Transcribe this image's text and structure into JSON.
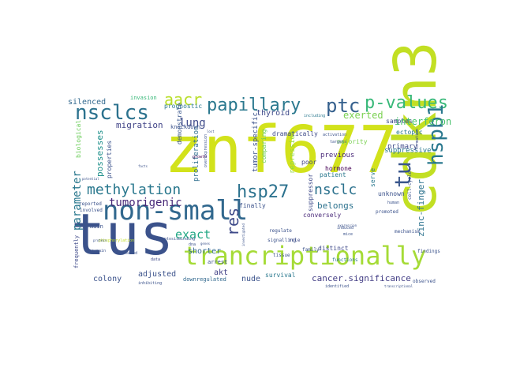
{
  "words": [
    {
      "text": "znf677",
      "color": "#d2e21b"
    },
    {
      "text": "cdkn3",
      "color": "#c2df23"
    },
    {
      "text": "tus",
      "color": "#3b528b"
    },
    {
      "text": "trancriptionally",
      "color": "#a5db36"
    },
    {
      "text": "non-small",
      "color": "#31688e"
    },
    {
      "text": "nsclcs",
      "color": "#2c728e"
    },
    {
      "text": "ptc",
      "color": "#35608d"
    },
    {
      "text": "papillary",
      "color": "#2a788e"
    },
    {
      "text": "aacr",
      "color": "#b8de29"
    },
    {
      "text": "p-values",
      "color": "#37b878"
    },
    {
      "text": "methylation",
      "color": "#2a788e"
    },
    {
      "text": "hsp27",
      "color": "#2c728e"
    },
    {
      "text": "hspb1",
      "color": "#2a788e"
    },
    {
      "text": "tu",
      "color": "#39568c"
    },
    {
      "text": "nsclc",
      "color": "#2c728e"
    },
    {
      "text": "res",
      "color": "#3e4a89"
    },
    {
      "text": "exact",
      "color": "#22a884"
    },
    {
      "text": "tumorigenic",
      "color": "#482878"
    },
    {
      "text": "parameter",
      "color": "#2a788e"
    },
    {
      "text": "lung",
      "color": "#3e4a89"
    },
    {
      "text": "zinc-finger",
      "color": "#2c728e"
    },
    {
      "text": "interferon",
      "color": "#4ac16d"
    },
    {
      "text": "exerted",
      "color": "#7ad151"
    },
    {
      "text": "silenced",
      "color": "#31688e"
    },
    {
      "text": "migration",
      "color": "#414487"
    },
    {
      "text": "possesses",
      "color": "#21918c"
    },
    {
      "text": "cancer.significance",
      "color": "#433e85"
    },
    {
      "text": "belongs",
      "color": "#2c728e"
    },
    {
      "text": "shorter",
      "color": "#31688e"
    },
    {
      "text": "adjusted",
      "color": "#3b528b"
    },
    {
      "text": "colony",
      "color": "#3b528b"
    },
    {
      "text": "nude",
      "color": "#3b528b"
    },
    {
      "text": "akt",
      "color": "#424086"
    },
    {
      "text": "thyroid",
      "color": "#3e4a89"
    },
    {
      "text": "proliferation",
      "color": "#2e6e8e"
    },
    {
      "text": "tumor-specific",
      "color": "#3b528b"
    },
    {
      "text": "repression",
      "color": "#90d743"
    },
    {
      "text": "suppressive",
      "color": "#2a788e"
    },
    {
      "text": "primary",
      "color": "#3e4a89"
    },
    {
      "text": "ectopic",
      "color": "#2a788e"
    },
    {
      "text": "samples",
      "color": "#3e4a89"
    },
    {
      "text": "previous",
      "color": "#482878"
    },
    {
      "text": "patient",
      "color": "#2a788e"
    },
    {
      "text": "hormone",
      "color": "#440154"
    },
    {
      "text": "unknown",
      "color": "#3b528b"
    },
    {
      "text": "poor",
      "color": "#414487"
    },
    {
      "text": "comparing",
      "color": "#6ccd5a"
    },
    {
      "text": "dramatically",
      "color": "#3e4a89"
    },
    {
      "text": "majority",
      "color": "#7ad151"
    },
    {
      "text": "properties",
      "color": "#3b528b"
    },
    {
      "text": "biological",
      "color": "#6ccd5a"
    },
    {
      "text": "prognostic",
      "color": "#2a788e"
    },
    {
      "text": "invasion",
      "color": "#37b878"
    },
    {
      "text": "knockdown",
      "color": "#3b528b"
    },
    {
      "text": "demonstrate",
      "color": "#39568c"
    },
    {
      "text": "suppressor",
      "color": "#3e4a89"
    },
    {
      "text": "conversely",
      "color": "#482878"
    },
    {
      "text": "finally",
      "color": "#3b528b"
    },
    {
      "text": "serve",
      "color": "#2a788e"
    },
    {
      "text": "distinct",
      "color": "#3e4a89"
    },
    {
      "text": "arrest",
      "color": "#3b528b"
    },
    {
      "text": "survival",
      "color": "#2a788e"
    },
    {
      "text": "downregulated",
      "color": "#31688e"
    },
    {
      "text": "frequently",
      "color": "#3e4a89"
    },
    {
      "text": "main",
      "color": "#3b528b"
    },
    {
      "text": "involved",
      "color": "#3b528b"
    },
    {
      "text": "reported",
      "color": "#3b528b"
    },
    {
      "text": "apoptosisbinding",
      "color": "#3b528b"
    },
    {
      "text": "phosphorylation",
      "color": "#c2df23"
    },
    {
      "text": "inhibiting",
      "color": "#3b528b"
    },
    {
      "text": "growth",
      "color": "#440154"
    },
    {
      "text": "overexpression",
      "color": "#3b528b"
    },
    {
      "text": "including",
      "color": "#2a788e"
    },
    {
      "text": "signalling",
      "color": "#3b528b"
    },
    {
      "text": "role",
      "color": "#3e4a89"
    },
    {
      "text": "family",
      "color": "#3b528b"
    },
    {
      "text": "regulate",
      "color": "#3b528b"
    },
    {
      "text": "tissue",
      "color": "#3b528b"
    },
    {
      "text": "promoted",
      "color": "#3b528b"
    },
    {
      "text": "findings",
      "color": "#3b528b"
    },
    {
      "text": "cell-cycle",
      "color": "#3b528b"
    },
    {
      "text": "mechanism",
      "color": "#3b528b"
    },
    {
      "text": "observed",
      "color": "#3b528b"
    },
    {
      "text": "identified",
      "color": "#3b528b"
    },
    {
      "text": "functions",
      "color": "#2a788e"
    },
    {
      "text": "human",
      "color": "#3b528b"
    },
    {
      "text": "induced",
      "color": "#3b528b"
    },
    {
      "text": "targets",
      "color": "#3b528b"
    },
    {
      "text": "formation",
      "color": "#3e4a89"
    },
    {
      "text": "activation",
      "color": "#3b528b"
    },
    {
      "text": "mice",
      "color": "#3b528b"
    },
    {
      "text": "potential",
      "color": "#3b528b"
    },
    {
      "text": "decreased",
      "color": "#3b528b"
    },
    {
      "text": "remain",
      "color": "#3b528b"
    },
    {
      "text": "data",
      "color": "#3e4a89"
    },
    {
      "text": "dna",
      "color": "#3b528b"
    },
    {
      "text": "protein",
      "color": "#3b528b"
    },
    {
      "text": "genes",
      "color": "#3b528b"
    },
    {
      "text": "lost",
      "color": "#3b528b"
    },
    {
      "text": "facts",
      "color": "#3b528b"
    },
    {
      "text": "transcriptional",
      "color": "#3b528b"
    },
    {
      "text": "expression",
      "color": "#3b528b"
    },
    {
      "text": "investigated",
      "color": "#3b528b"
    }
  ]
}
